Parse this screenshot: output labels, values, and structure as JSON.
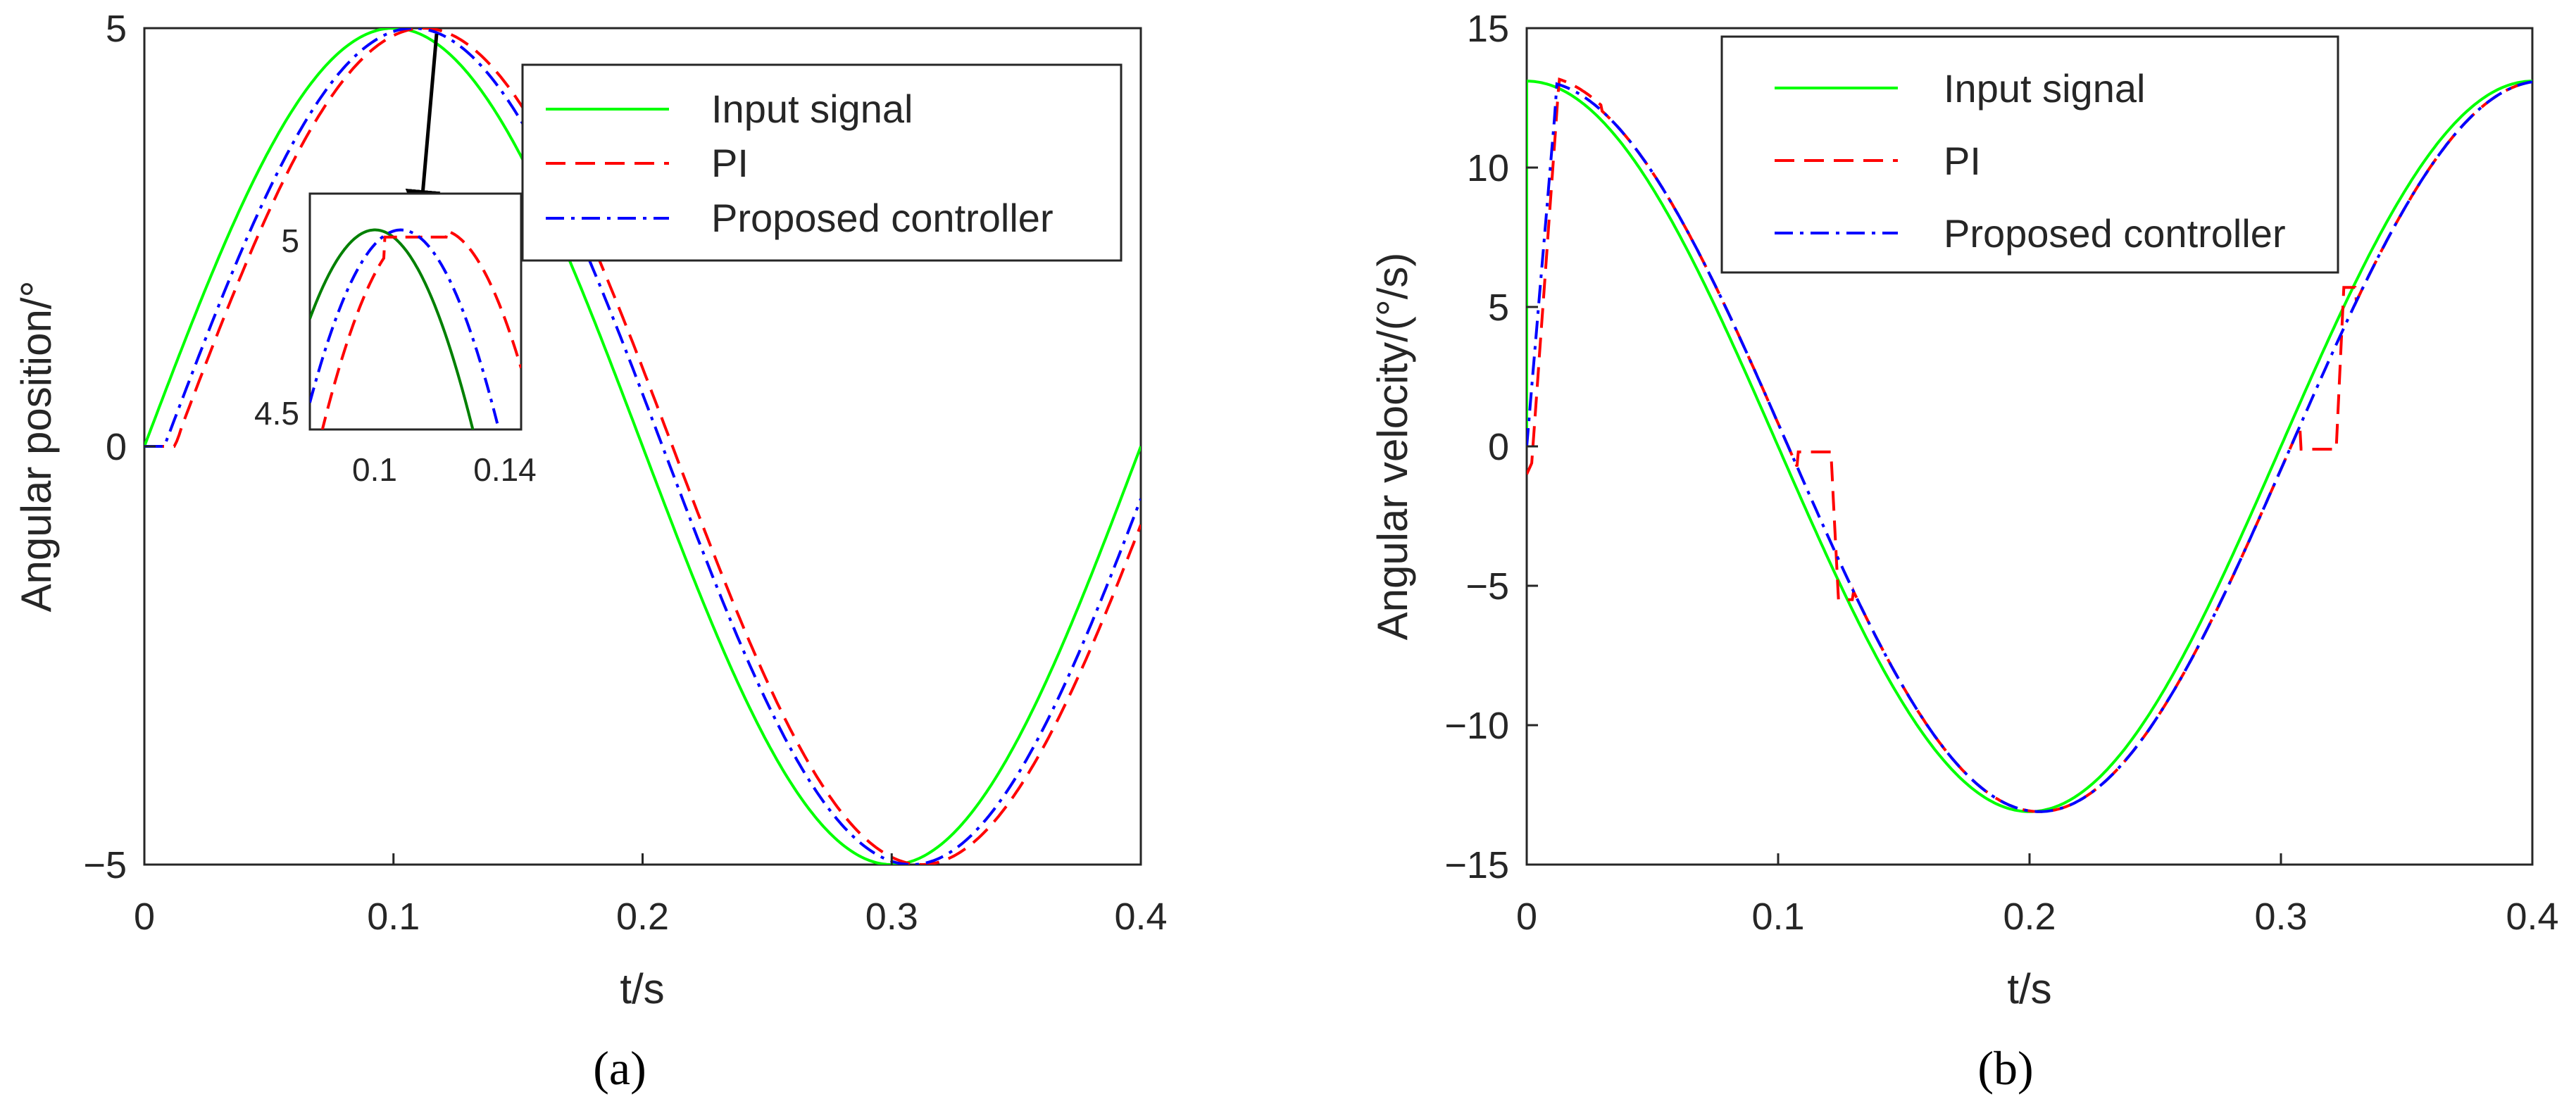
{
  "figure": {
    "panels": [
      "(a)",
      "(b)"
    ]
  },
  "colors": {
    "input": "#00ff00",
    "pi": "#ff0000",
    "proposed": "#0000ff",
    "inset_input": "#008000",
    "axis": "#262626"
  },
  "chart_data": [
    {
      "panel": "(a)",
      "type": "line",
      "xlabel": "t/s",
      "ylabel": "Angular position/°",
      "xlim": [
        0,
        0.4
      ],
      "ylim": [
        -5,
        5
      ],
      "xticks": [
        0,
        0.1,
        0.2,
        0.3,
        0.4
      ],
      "xtick_labels": [
        "0",
        "0.1",
        "0.2",
        "0.3",
        "0.4"
      ],
      "yticks": [
        -5,
        0,
        5
      ],
      "ytick_labels": [
        "−5",
        "0",
        "5"
      ],
      "legend": [
        "Input signal",
        "PI",
        "Proposed controller"
      ],
      "legend_position": "top-right",
      "series": [
        {
          "name": "Input signal",
          "style": "solid",
          "amplitude": 5,
          "period": 0.4,
          "delay": 0.0
        },
        {
          "name": "PI",
          "style": "dashed",
          "amplitude": 5,
          "period": 0.4,
          "delay": 0.012,
          "start_lag": 0.01
        },
        {
          "name": "Proposed controller",
          "style": "dashdot",
          "amplitude": 5,
          "period": 0.4,
          "delay": 0.008
        }
      ],
      "inset": {
        "xlim": [
          0.08,
          0.145
        ],
        "ylim": [
          4.45,
          5.1
        ],
        "xticks": [
          0.1,
          0.14
        ],
        "xtick_labels": [
          "0.1",
          "0.14"
        ],
        "yticks": [
          4.5,
          5
        ],
        "ytick_labels": [
          "4.5",
          "5"
        ],
        "annotation": "arrow pointing to peak region near t = 0.1"
      }
    },
    {
      "panel": "(b)",
      "type": "line",
      "xlabel": "t/s",
      "ylabel": "Angular velocity/(°/s)",
      "xlim": [
        0,
        0.4
      ],
      "ylim": [
        -15,
        15
      ],
      "xticks": [
        0,
        0.1,
        0.2,
        0.3,
        0.4
      ],
      "xtick_labels": [
        "0",
        "0.1",
        "0.2",
        "0.3",
        "0.4"
      ],
      "yticks": [
        -15,
        -10,
        -5,
        0,
        5,
        10,
        15
      ],
      "ytick_labels": [
        "−15",
        "−10",
        "−5",
        "0",
        "5",
        "10",
        "15"
      ],
      "legend": [
        "Input signal",
        "PI",
        "Proposed controller"
      ],
      "legend_position": "top-center",
      "series": [
        {
          "name": "Input signal",
          "style": "solid",
          "amplitude": 13.1,
          "period": 0.4,
          "delay": 0.0,
          "notes": "cosine, jumps from 0 to 13.1 at t = 0"
        },
        {
          "name": "PI",
          "style": "dashed",
          "amplitude": 13.1,
          "period": 0.4,
          "delay": 0.004,
          "notes": "starts near −1, overshoot to 13.3 at t ≈ 0.013, flat segments near 0 around t ≈ 0.11–0.12 and t ≈ 0.31–0.32"
        },
        {
          "name": "Proposed controller",
          "style": "dashdot",
          "amplitude": 13.1,
          "period": 0.4,
          "delay": 0.004,
          "notes": "rises from 0 to ~12.8 by t ≈ 0.012"
        }
      ]
    }
  ]
}
